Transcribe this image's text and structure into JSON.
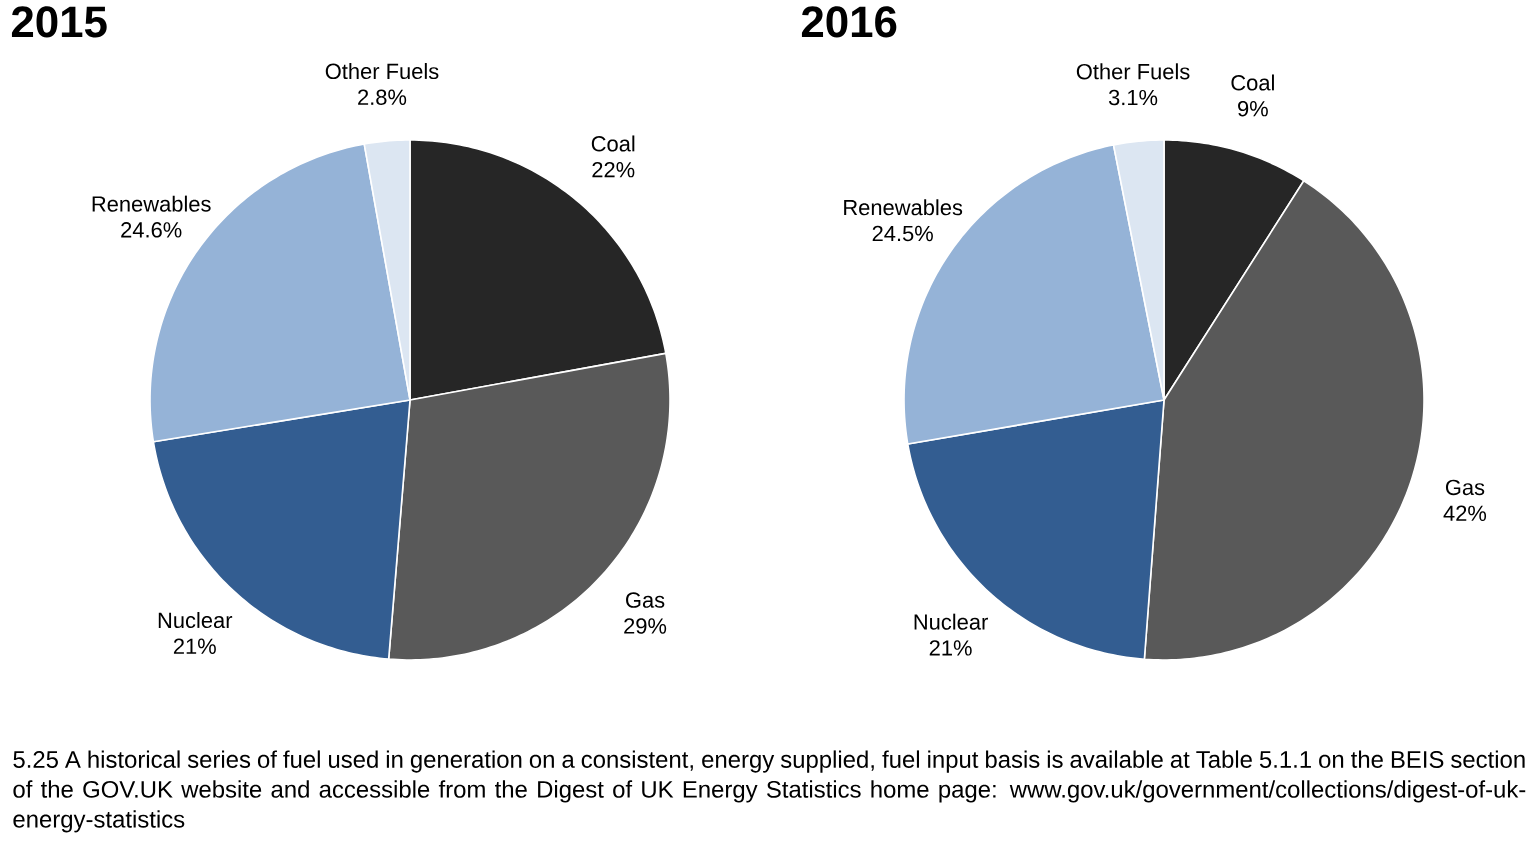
{
  "chart_data": [
    {
      "type": "pie",
      "title": "2015",
      "categories": [
        "Coal",
        "Gas",
        "Nuclear",
        "Renewables",
        "Other Fuels"
      ],
      "values": [
        22,
        29,
        21,
        24.6,
        2.8
      ],
      "value_labels": [
        "22%",
        "29%",
        "21%",
        "24.6%",
        "2.8%"
      ],
      "colors": [
        "#262626",
        "#595959",
        "#335d91",
        "#95b3d7",
        "#dce6f2"
      ],
      "annotations": [
        "5.25 A historical series of fuel used in generation on a consistent, energy supplied, fuel input basis is available at Table 5.1.1 on the BEIS section of the GOV.UK website and accessible from the Digest of UK Energy Statistics home page: www.gov.uk/government/collections/digest-of-uk-energy-statistics"
      ]
    },
    {
      "type": "pie",
      "title": "2016",
      "categories": [
        "Coal",
        "Gas",
        "Nuclear",
        "Renewables",
        "Other Fuels"
      ],
      "values": [
        9,
        42,
        21,
        24.5,
        3.1
      ],
      "value_labels": [
        "9%",
        "42%",
        "21%",
        "24.5%",
        "3.1%"
      ],
      "colors": [
        "#262626",
        "#595959",
        "#335d91",
        "#95b3d7",
        "#dce6f2"
      ]
    }
  ]
}
